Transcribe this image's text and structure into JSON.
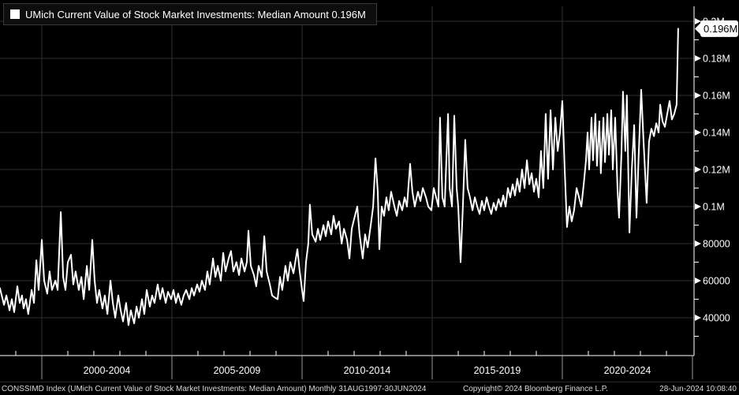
{
  "title": {
    "text": "UMich Current Value of Stock Market Investments: Median Amount 0.196M",
    "legend_color": "#ffffff"
  },
  "colors": {
    "background": "#000000",
    "line": "#ffffff",
    "grid": "#2f2f2f",
    "axis": "#ffffff",
    "tag_bg": "#ffffff",
    "tag_text": "#000000",
    "label_text": "#ffffff"
  },
  "y_axis": {
    "side": "right",
    "current_value_tag": "0.196M",
    "major_ticks": [
      {
        "label": "0.2M",
        "value": 200000
      },
      {
        "label": "0.18M",
        "value": 180000
      },
      {
        "label": "0.16M",
        "value": 160000
      },
      {
        "label": "0.14M",
        "value": 140000
      },
      {
        "label": "0.12M",
        "value": 120000
      },
      {
        "label": "0.1M",
        "value": 100000
      },
      {
        "label": "80000",
        "value": 80000
      },
      {
        "label": "60000",
        "value": 60000
      },
      {
        "label": "40000",
        "value": 40000
      }
    ],
    "minor_tick_values": [
      190000,
      170000,
      150000,
      130000,
      110000,
      90000,
      70000,
      50000,
      30000
    ]
  },
  "x_axis": {
    "range_labels": [
      "2000-2004",
      "2005-2009",
      "2010-2014",
      "2015-2019",
      "2020-2024"
    ],
    "boundary_years": [
      2000,
      2005,
      2010,
      2015,
      2020,
      2025
    ],
    "minor_tick_years": [
      1999,
      2001,
      2002,
      2003,
      2004,
      2006,
      2007,
      2008,
      2009,
      2011,
      2012,
      2013,
      2014,
      2016,
      2017,
      2018,
      2019,
      2021,
      2022,
      2023,
      2024
    ]
  },
  "footer": {
    "left": "CONSSIMD Index (UMich Current Value of Stock Market Investments: Median Amount)  Monthly 31AUG1997-30JUN2024",
    "center": "Copyright© 2024 Bloomberg Finance L.P.",
    "right": "28-Jun-2024 10:08:40"
  },
  "chart_data": {
    "type": "line",
    "title": "UMich Current Value of Stock Market Investments: Median Amount",
    "frequency": "Monthly",
    "date_range": "31AUG1997-30JUN2024",
    "last_value": 196000,
    "ylim": [
      20000,
      205000
    ],
    "xlim_years": [
      1998.4,
      2025.06
    ],
    "grid": true,
    "legend_position": "top-left",
    "series_name": "CONSSIMD Index",
    "points": [
      [
        1998.39,
        56000
      ],
      [
        1998.55,
        47000
      ],
      [
        1998.64,
        52000
      ],
      [
        1998.76,
        44000
      ],
      [
        1998.85,
        50000
      ],
      [
        1998.94,
        43000
      ],
      [
        1999.06,
        57000
      ],
      [
        1999.15,
        48000
      ],
      [
        1999.24,
        52000
      ],
      [
        1999.3,
        45000
      ],
      [
        1999.39,
        50000
      ],
      [
        1999.48,
        42000
      ],
      [
        1999.61,
        55000
      ],
      [
        1999.7,
        48000
      ],
      [
        1999.79,
        71000
      ],
      [
        1999.88,
        55000
      ],
      [
        2000.0,
        82000
      ],
      [
        2000.09,
        60000
      ],
      [
        2000.21,
        53000
      ],
      [
        2000.3,
        65000
      ],
      [
        2000.39,
        55000
      ],
      [
        2000.52,
        60000
      ],
      [
        2000.61,
        55000
      ],
      [
        2000.73,
        97000
      ],
      [
        2000.82,
        62000
      ],
      [
        2000.91,
        55000
      ],
      [
        2001.0,
        70000
      ],
      [
        2001.12,
        74000
      ],
      [
        2001.21,
        58000
      ],
      [
        2001.3,
        65000
      ],
      [
        2001.42,
        55000
      ],
      [
        2001.52,
        62000
      ],
      [
        2001.61,
        50000
      ],
      [
        2001.73,
        68000
      ],
      [
        2001.82,
        55000
      ],
      [
        2001.94,
        82000
      ],
      [
        2002.03,
        60000
      ],
      [
        2002.12,
        48000
      ],
      [
        2002.21,
        55000
      ],
      [
        2002.33,
        45000
      ],
      [
        2002.42,
        52000
      ],
      [
        2002.52,
        42000
      ],
      [
        2002.64,
        60000
      ],
      [
        2002.73,
        48000
      ],
      [
        2002.82,
        40000
      ],
      [
        2002.94,
        52000
      ],
      [
        2003.03,
        44000
      ],
      [
        2003.12,
        38000
      ],
      [
        2003.24,
        48000
      ],
      [
        2003.33,
        36000
      ],
      [
        2003.42,
        44000
      ],
      [
        2003.55,
        37000
      ],
      [
        2003.64,
        46000
      ],
      [
        2003.73,
        40000
      ],
      [
        2003.85,
        50000
      ],
      [
        2003.94,
        42000
      ],
      [
        2004.03,
        55000
      ],
      [
        2004.15,
        46000
      ],
      [
        2004.24,
        52000
      ],
      [
        2004.33,
        48000
      ],
      [
        2004.45,
        58000
      ],
      [
        2004.55,
        50000
      ],
      [
        2004.64,
        56000
      ],
      [
        2004.76,
        48000
      ],
      [
        2004.85,
        54000
      ],
      [
        2004.97,
        50000
      ],
      [
        2005.06,
        55000
      ],
      [
        2005.15,
        48000
      ],
      [
        2005.24,
        53000
      ],
      [
        2005.36,
        47000
      ],
      [
        2005.45,
        52000
      ],
      [
        2005.55,
        55000
      ],
      [
        2005.67,
        50000
      ],
      [
        2005.76,
        56000
      ],
      [
        2005.85,
        52000
      ],
      [
        2005.97,
        58000
      ],
      [
        2006.06,
        54000
      ],
      [
        2006.15,
        60000
      ],
      [
        2006.27,
        55000
      ],
      [
        2006.36,
        65000
      ],
      [
        2006.45,
        58000
      ],
      [
        2006.58,
        72000
      ],
      [
        2006.67,
        62000
      ],
      [
        2006.76,
        68000
      ],
      [
        2006.88,
        60000
      ],
      [
        2006.97,
        75000
      ],
      [
        2007.06,
        65000
      ],
      [
        2007.18,
        72000
      ],
      [
        2007.27,
        76000
      ],
      [
        2007.36,
        65000
      ],
      [
        2007.48,
        70000
      ],
      [
        2007.58,
        63000
      ],
      [
        2007.67,
        72000
      ],
      [
        2007.79,
        65000
      ],
      [
        2007.88,
        70000
      ],
      [
        2007.94,
        87000
      ],
      [
        2008.03,
        68000
      ],
      [
        2008.15,
        63000
      ],
      [
        2008.24,
        57000
      ],
      [
        2008.33,
        68000
      ],
      [
        2008.45,
        62000
      ],
      [
        2008.55,
        84000
      ],
      [
        2008.64,
        65000
      ],
      [
        2008.76,
        58000
      ],
      [
        2008.85,
        52000
      ],
      [
        2008.94,
        51000
      ],
      [
        2009.06,
        50000
      ],
      [
        2009.15,
        62000
      ],
      [
        2009.24,
        55000
      ],
      [
        2009.36,
        68000
      ],
      [
        2009.45,
        60000
      ],
      [
        2009.55,
        70000
      ],
      [
        2009.67,
        64000
      ],
      [
        2009.76,
        72000
      ],
      [
        2009.82,
        77000
      ],
      [
        2009.91,
        65000
      ],
      [
        2010.0,
        55000
      ],
      [
        2010.06,
        49000
      ],
      [
        2010.15,
        70000
      ],
      [
        2010.24,
        80000
      ],
      [
        2010.3,
        101000
      ],
      [
        2010.39,
        85000
      ],
      [
        2010.52,
        81000
      ],
      [
        2010.61,
        88000
      ],
      [
        2010.7,
        82000
      ],
      [
        2010.82,
        90000
      ],
      [
        2010.91,
        84000
      ],
      [
        2011.0,
        92000
      ],
      [
        2011.12,
        85000
      ],
      [
        2011.21,
        95000
      ],
      [
        2011.3,
        88000
      ],
      [
        2011.42,
        92000
      ],
      [
        2011.52,
        80000
      ],
      [
        2011.61,
        88000
      ],
      [
        2011.73,
        82000
      ],
      [
        2011.82,
        72000
      ],
      [
        2011.91,
        88000
      ],
      [
        2012.03,
        95000
      ],
      [
        2012.12,
        100000
      ],
      [
        2012.21,
        85000
      ],
      [
        2012.33,
        72000
      ],
      [
        2012.42,
        85000
      ],
      [
        2012.52,
        78000
      ],
      [
        2012.64,
        90000
      ],
      [
        2012.73,
        100000
      ],
      [
        2012.82,
        126000
      ],
      [
        2012.91,
        108000
      ],
      [
        2012.97,
        77000
      ],
      [
        2013.06,
        100000
      ],
      [
        2013.15,
        95000
      ],
      [
        2013.24,
        105000
      ],
      [
        2013.33,
        98000
      ],
      [
        2013.42,
        108000
      ],
      [
        2013.55,
        100000
      ],
      [
        2013.64,
        95000
      ],
      [
        2013.73,
        103000
      ],
      [
        2013.85,
        98000
      ],
      [
        2013.94,
        105000
      ],
      [
        2014.03,
        100000
      ],
      [
        2014.15,
        123000
      ],
      [
        2014.24,
        108000
      ],
      [
        2014.33,
        100000
      ],
      [
        2014.45,
        108000
      ],
      [
        2014.55,
        103000
      ],
      [
        2014.64,
        110000
      ],
      [
        2014.76,
        105000
      ],
      [
        2014.85,
        100000
      ],
      [
        2014.97,
        98000
      ],
      [
        2015.06,
        110000
      ],
      [
        2015.15,
        105000
      ],
      [
        2015.24,
        100000
      ],
      [
        2015.3,
        148000
      ],
      [
        2015.39,
        105000
      ],
      [
        2015.48,
        100000
      ],
      [
        2015.61,
        150000
      ],
      [
        2015.67,
        110000
      ],
      [
        2015.76,
        100000
      ],
      [
        2015.85,
        149000
      ],
      [
        2015.94,
        110000
      ],
      [
        2016.0,
        100000
      ],
      [
        2016.09,
        70000
      ],
      [
        2016.18,
        100000
      ],
      [
        2016.27,
        136000
      ],
      [
        2016.36,
        110000
      ],
      [
        2016.45,
        105000
      ],
      [
        2016.55,
        98000
      ],
      [
        2016.64,
        105000
      ],
      [
        2016.73,
        100000
      ],
      [
        2016.82,
        96000
      ],
      [
        2016.91,
        103000
      ],
      [
        2017.0,
        98000
      ],
      [
        2017.09,
        105000
      ],
      [
        2017.18,
        100000
      ],
      [
        2017.27,
        96000
      ],
      [
        2017.36,
        102000
      ],
      [
        2017.45,
        98000
      ],
      [
        2017.55,
        104000
      ],
      [
        2017.64,
        100000
      ],
      [
        2017.73,
        106000
      ],
      [
        2017.82,
        100000
      ],
      [
        2017.91,
        110000
      ],
      [
        2018.0,
        105000
      ],
      [
        2018.09,
        112000
      ],
      [
        2018.18,
        106000
      ],
      [
        2018.27,
        115000
      ],
      [
        2018.36,
        108000
      ],
      [
        2018.45,
        120000
      ],
      [
        2018.55,
        110000
      ],
      [
        2018.64,
        125000
      ],
      [
        2018.73,
        112000
      ],
      [
        2018.82,
        118000
      ],
      [
        2018.91,
        108000
      ],
      [
        2019.0,
        115000
      ],
      [
        2019.09,
        105000
      ],
      [
        2019.18,
        130000
      ],
      [
        2019.27,
        110000
      ],
      [
        2019.36,
        150000
      ],
      [
        2019.45,
        115000
      ],
      [
        2019.55,
        152000
      ],
      [
        2019.64,
        120000
      ],
      [
        2019.73,
        148000
      ],
      [
        2019.82,
        130000
      ],
      [
        2019.91,
        140000
      ],
      [
        2020.0,
        157000
      ],
      [
        2020.09,
        120000
      ],
      [
        2020.18,
        89000
      ],
      [
        2020.27,
        100000
      ],
      [
        2020.36,
        92000
      ],
      [
        2020.45,
        98000
      ],
      [
        2020.55,
        110000
      ],
      [
        2020.64,
        105000
      ],
      [
        2020.73,
        100000
      ],
      [
        2020.82,
        112000
      ],
      [
        2020.91,
        125000
      ],
      [
        2020.97,
        140000
      ],
      [
        2021.03,
        120000
      ],
      [
        2021.12,
        148000
      ],
      [
        2021.18,
        125000
      ],
      [
        2021.27,
        150000
      ],
      [
        2021.33,
        122000
      ],
      [
        2021.42,
        146000
      ],
      [
        2021.48,
        118000
      ],
      [
        2021.58,
        148000
      ],
      [
        2021.64,
        124000
      ],
      [
        2021.73,
        150000
      ],
      [
        2021.79,
        128000
      ],
      [
        2021.88,
        152000
      ],
      [
        2021.94,
        120000
      ],
      [
        2022.03,
        148000
      ],
      [
        2022.12,
        109000
      ],
      [
        2022.18,
        94000
      ],
      [
        2022.27,
        128000
      ],
      [
        2022.33,
        162000
      ],
      [
        2022.42,
        130000
      ],
      [
        2022.48,
        160000
      ],
      [
        2022.58,
        86000
      ],
      [
        2022.67,
        120000
      ],
      [
        2022.76,
        144000
      ],
      [
        2022.85,
        94000
      ],
      [
        2022.94,
        130000
      ],
      [
        2023.03,
        163000
      ],
      [
        2023.12,
        135000
      ],
      [
        2023.24,
        102000
      ],
      [
        2023.33,
        135000
      ],
      [
        2023.42,
        142000
      ],
      [
        2023.52,
        138000
      ],
      [
        2023.61,
        145000
      ],
      [
        2023.7,
        140000
      ],
      [
        2023.76,
        155000
      ],
      [
        2023.85,
        146000
      ],
      [
        2023.94,
        143000
      ],
      [
        2024.03,
        150000
      ],
      [
        2024.12,
        157000
      ],
      [
        2024.21,
        147000
      ],
      [
        2024.3,
        150000
      ],
      [
        2024.39,
        155000
      ],
      [
        2024.45,
        196000
      ]
    ]
  }
}
